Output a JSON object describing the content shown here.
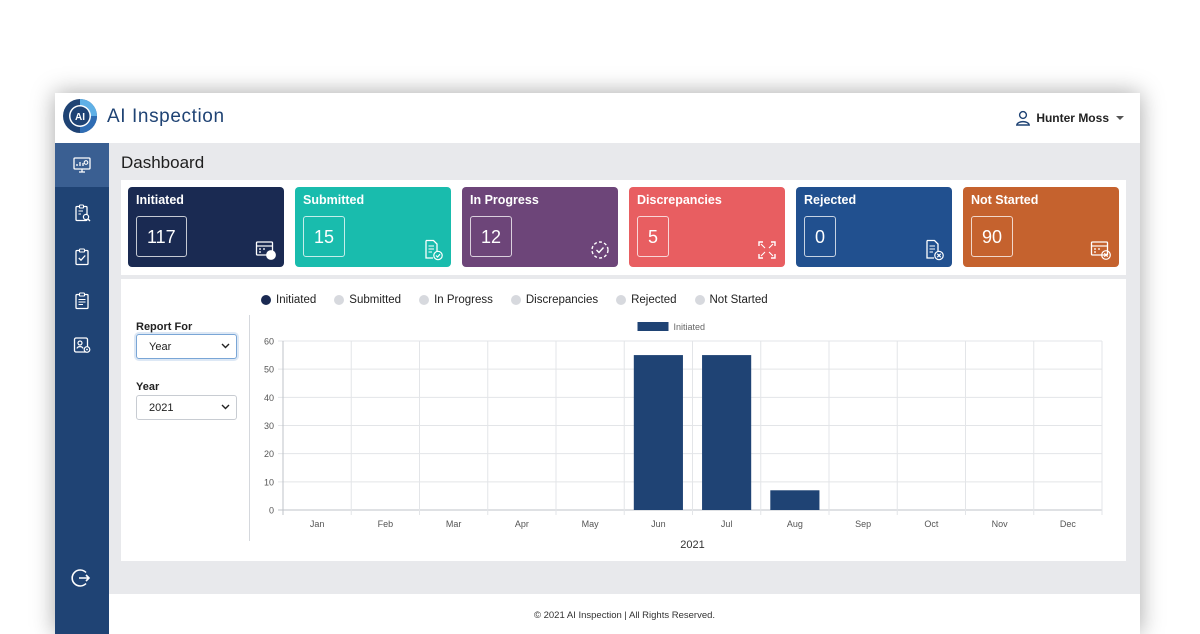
{
  "app": {
    "title": "AI Inspection",
    "logo_text": "AI"
  },
  "user": {
    "name": "Hunter Moss"
  },
  "sidebar": {
    "items": [
      {
        "icon": "monitor-chart-icon",
        "active": true
      },
      {
        "icon": "clipboard-search-icon",
        "active": false
      },
      {
        "icon": "clipboard-check-icon",
        "active": false
      },
      {
        "icon": "clipboard-list-icon",
        "active": false
      },
      {
        "icon": "user-settings-icon",
        "active": false
      }
    ],
    "logout_icon": "logout-icon"
  },
  "page": {
    "title": "Dashboard"
  },
  "cards": [
    {
      "title": "Initiated",
      "count": "117",
      "color": "#1a2a52",
      "icon": "calendar-check-icon"
    },
    {
      "title": "Submitted",
      "count": "15",
      "color": "#19bcad",
      "icon": "document-check-icon"
    },
    {
      "title": "In Progress",
      "count": "12",
      "color": "#6d4579",
      "icon": "progress-circle-icon"
    },
    {
      "title": "Discrepancies",
      "count": "5",
      "color": "#e85e61",
      "icon": "expand-corners-icon"
    },
    {
      "title": "Rejected",
      "count": "0",
      "color": "#21508f",
      "icon": "document-reject-icon"
    },
    {
      "title": "Not Started",
      "count": "90",
      "color": "#c5622e",
      "icon": "calendar-reject-icon"
    }
  ],
  "filters": {
    "report_for_label": "Report For",
    "report_for_value": "Year",
    "year_label": "Year",
    "year_value": "2021"
  },
  "legend_toggles": [
    {
      "label": "Initiated",
      "active": true,
      "color": "#1a2a52"
    },
    {
      "label": "Submitted",
      "active": false,
      "color": "#d7d9de"
    },
    {
      "label": "In Progress",
      "active": false,
      "color": "#d7d9de"
    },
    {
      "label": "Discrepancies",
      "active": false,
      "color": "#d7d9de"
    },
    {
      "label": "Rejected",
      "active": false,
      "color": "#d7d9de"
    },
    {
      "label": "Not Started",
      "active": false,
      "color": "#d7d9de"
    }
  ],
  "chart_data": {
    "type": "bar",
    "categories": [
      "Jan",
      "Feb",
      "Mar",
      "Apr",
      "May",
      "Jun",
      "Jul",
      "Aug",
      "Sep",
      "Oct",
      "Nov",
      "Dec"
    ],
    "series": [
      {
        "name": "Initiated",
        "values": [
          0,
          0,
          0,
          0,
          0,
          55,
          55,
          7,
          0,
          0,
          0,
          0
        ],
        "color": "#1f4374"
      }
    ],
    "xlabel": "2021",
    "ylabel": "",
    "ylim": [
      0,
      60
    ],
    "yticks": [
      0,
      10,
      20,
      30,
      40,
      50,
      60
    ],
    "grid": true,
    "legend": "top-center"
  },
  "footer": {
    "text": "© 2021 AI Inspection | All Rights Reserved."
  }
}
